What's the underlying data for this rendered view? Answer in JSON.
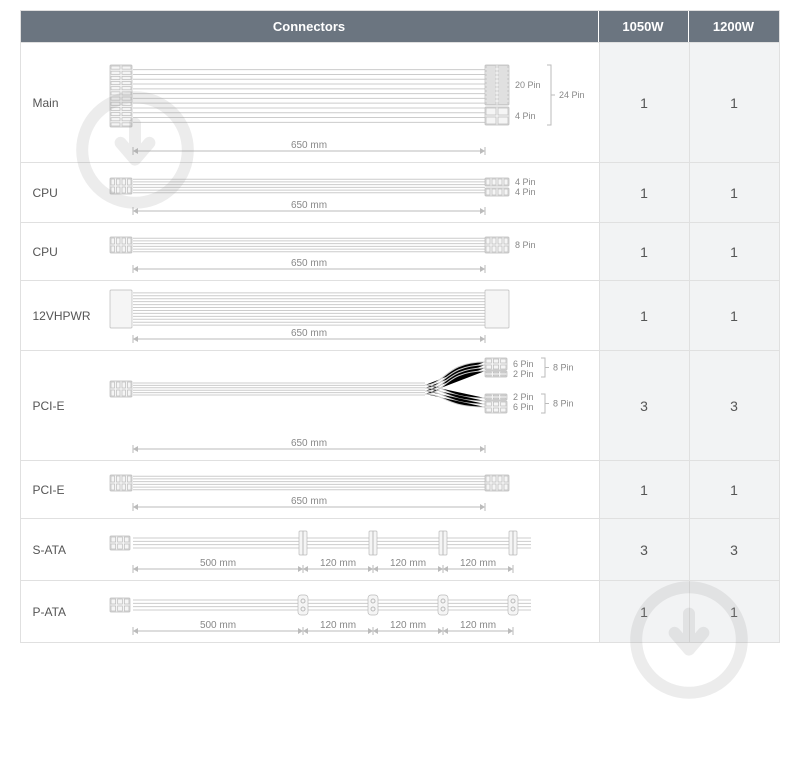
{
  "header": {
    "connectors": "Connectors",
    "col1": "1050W",
    "col2": "1200W"
  },
  "colors": {
    "header_bg": "#6b7580",
    "header_fg": "#ffffff",
    "numcell_bg": "#f2f3f4",
    "border": "#e0e0e0",
    "text": "#555555",
    "dim": "#888888",
    "stroke": "#bbbbbb"
  },
  "rows": [
    {
      "label": "Main",
      "v1": "1",
      "v2": "1",
      "height": 120,
      "diagram": {
        "type": "thick-cable",
        "length_label": "650 mm",
        "left_conn": {
          "h": 62,
          "rows": 12,
          "cols": 2
        },
        "right_parts": [
          {
            "h": 40,
            "label": "20 Pin",
            "rows": 10,
            "cols": 2
          },
          {
            "h": 18,
            "label": "4 Pin",
            "rows": 2,
            "cols": 2
          }
        ],
        "bracket_label": "24 Pin"
      }
    },
    {
      "label": "CPU",
      "v1": "1",
      "v2": "1",
      "height": 60,
      "diagram": {
        "type": "thin-cable",
        "length_label": "650 mm",
        "left_conn": {
          "h": 16,
          "rows": 2,
          "cols": 4
        },
        "right_parts": [
          {
            "h": 8,
            "label": "4 Pin",
            "rows": 1,
            "cols": 4
          },
          {
            "h": 8,
            "label": "4 Pin",
            "rows": 1,
            "cols": 4
          }
        ]
      }
    },
    {
      "label": "CPU",
      "v1": "1",
      "v2": "1",
      "height": 58,
      "diagram": {
        "type": "thin-cable",
        "length_label": "650 mm",
        "left_conn": {
          "h": 16,
          "rows": 2,
          "cols": 4
        },
        "right_parts": [
          {
            "h": 16,
            "label": "8 Pin",
            "rows": 2,
            "cols": 4
          }
        ]
      }
    },
    {
      "label": "12VHPWR",
      "v1": "1",
      "v2": "1",
      "height": 70,
      "diagram": {
        "type": "thick-cable",
        "length_label": "650 mm",
        "left_conn": {
          "h": 38,
          "rows": 0,
          "cols": 0,
          "solid": true
        },
        "right_parts": [
          {
            "h": 38,
            "label": "",
            "rows": 0,
            "cols": 0,
            "solid": true
          }
        ]
      }
    },
    {
      "label": "PCI-E",
      "v1": "3",
      "v2": "3",
      "height": 110,
      "diagram": {
        "type": "split-cable",
        "length_label": "650 mm",
        "left_conn": {
          "h": 16,
          "rows": 2,
          "cols": 4
        },
        "branches": [
          [
            {
              "h": 12,
              "label": "6 Pin"
            },
            {
              "h": 6,
              "label": "2 Pin"
            }
          ],
          [
            {
              "h": 6,
              "label": "2 Pin"
            },
            {
              "h": 12,
              "label": "6 Pin"
            }
          ]
        ],
        "bracket_labels": [
          "8 Pin",
          "8 Pin"
        ]
      }
    },
    {
      "label": "PCI-E",
      "v1": "1",
      "v2": "1",
      "height": 58,
      "diagram": {
        "type": "thin-cable",
        "length_label": "650 mm",
        "left_conn": {
          "h": 16,
          "rows": 2,
          "cols": 4
        },
        "right_parts": [
          {
            "h": 16,
            "label": "",
            "rows": 2,
            "cols": 4
          }
        ]
      }
    },
    {
      "label": "S-ATA",
      "v1": "3",
      "v2": "3",
      "height": 62,
      "diagram": {
        "type": "daisy-chain",
        "segments": [
          "500 mm",
          "120 mm",
          "120 mm",
          "120 mm"
        ],
        "left_conn": {
          "h": 14
        },
        "conn_style": "sata"
      }
    },
    {
      "label": "P-ATA",
      "v1": "1",
      "v2": "1",
      "height": 62,
      "diagram": {
        "type": "daisy-chain",
        "segments": [
          "500 mm",
          "120 mm",
          "120 mm",
          "120 mm"
        ],
        "left_conn": {
          "h": 14
        },
        "conn_style": "molex"
      }
    }
  ]
}
